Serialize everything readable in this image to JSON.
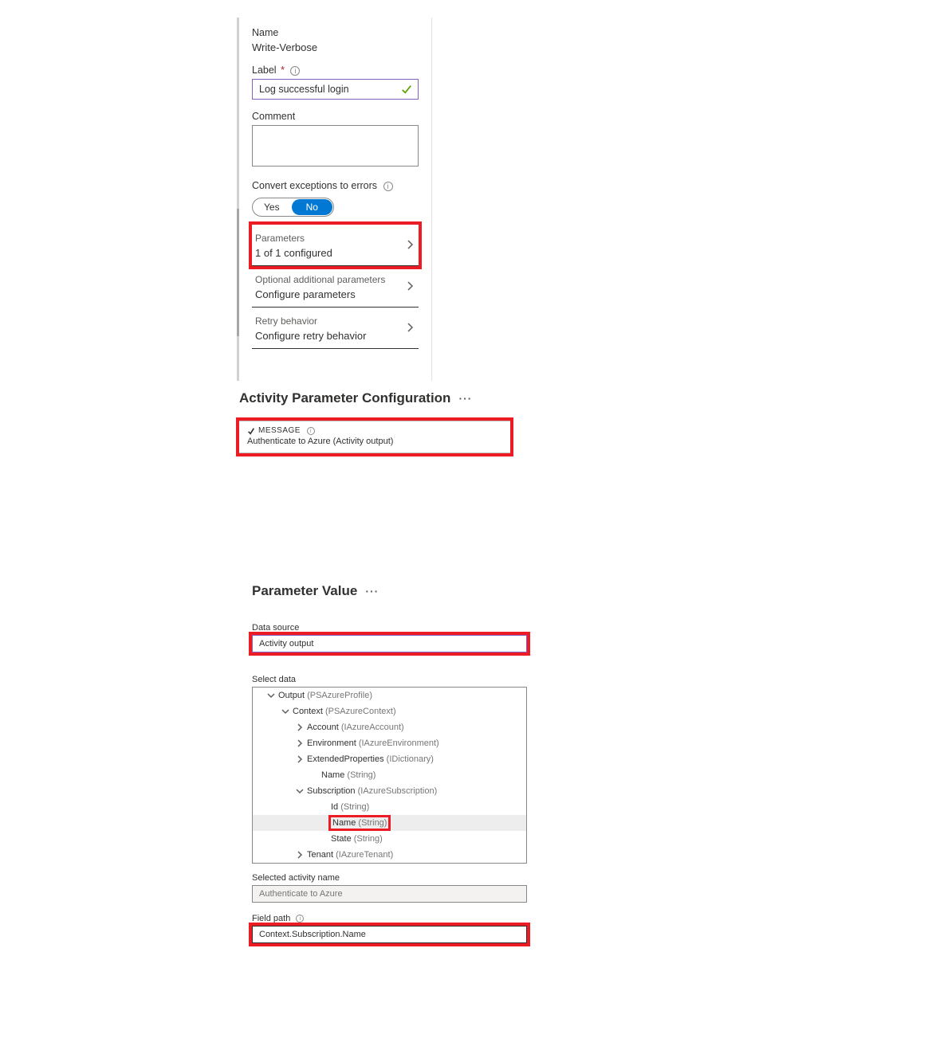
{
  "colors": {
    "highlight_border": "#ed1c24",
    "focus_border": "#8661c5",
    "toggle_active_bg": "#0078d4",
    "check_stroke": "#57a300",
    "text_primary": "#323130",
    "text_secondary": "#605e5c",
    "border_default": "#8a8886"
  },
  "panel1": {
    "name_label": "Name",
    "name_value": "Write-Verbose",
    "label_label": "Label",
    "label_required": "*",
    "label_value": "Log successful login",
    "comment_label": "Comment",
    "comment_value": "",
    "convert_label": "Convert exceptions to errors",
    "toggle_yes": "Yes",
    "toggle_no": "No",
    "toggle_value": "No",
    "nav": [
      {
        "title": "Parameters",
        "subtitle": "1 of 1 configured",
        "highlight": true
      },
      {
        "title": "Optional additional parameters",
        "subtitle": "Configure parameters",
        "highlight": false
      },
      {
        "title": "Retry behavior",
        "subtitle": "Configure retry behavior",
        "highlight": false
      }
    ]
  },
  "panel2": {
    "title": "Activity Parameter Configuration",
    "message_label": "MESSAGE",
    "message_value": "Authenticate to Azure (Activity output)"
  },
  "panel3": {
    "title": "Parameter Value",
    "data_source_label": "Data source",
    "data_source_value": "Activity output",
    "select_data_label": "Select data",
    "tree": [
      {
        "indent": 1,
        "twisty": "down",
        "label": "Output",
        "paren": "(PSAzureProfile)"
      },
      {
        "indent": 2,
        "twisty": "down",
        "label": "Context",
        "paren": "(PSAzureContext)"
      },
      {
        "indent": 3,
        "twisty": "right",
        "label": "Account",
        "paren": "(IAzureAccount)"
      },
      {
        "indent": 3,
        "twisty": "right",
        "label": "Environment",
        "paren": "(IAzureEnvironment)"
      },
      {
        "indent": 3,
        "twisty": "right",
        "label": "ExtendedProperties",
        "paren": "(IDictionary)"
      },
      {
        "indent": 4,
        "twisty": "none",
        "label": "Name",
        "paren": "(String)"
      },
      {
        "indent": 3,
        "twisty": "down",
        "label": "Subscription",
        "paren": "(IAzureSubscription)"
      },
      {
        "indent": 5,
        "twisty": "none",
        "label": "Id",
        "paren": "(String)"
      },
      {
        "indent": 5,
        "twisty": "none",
        "label": "Name",
        "paren": "(String)",
        "selected": true,
        "highlight": true
      },
      {
        "indent": 5,
        "twisty": "none",
        "label": "State",
        "paren": "(String)"
      },
      {
        "indent": 3,
        "twisty": "right",
        "label": "Tenant",
        "paren": "(IAzureTenant)"
      }
    ],
    "selected_activity_label": "Selected activity name",
    "selected_activity_value": "Authenticate to Azure",
    "field_path_label": "Field path",
    "field_path_value": "Context.Subscription.Name"
  }
}
